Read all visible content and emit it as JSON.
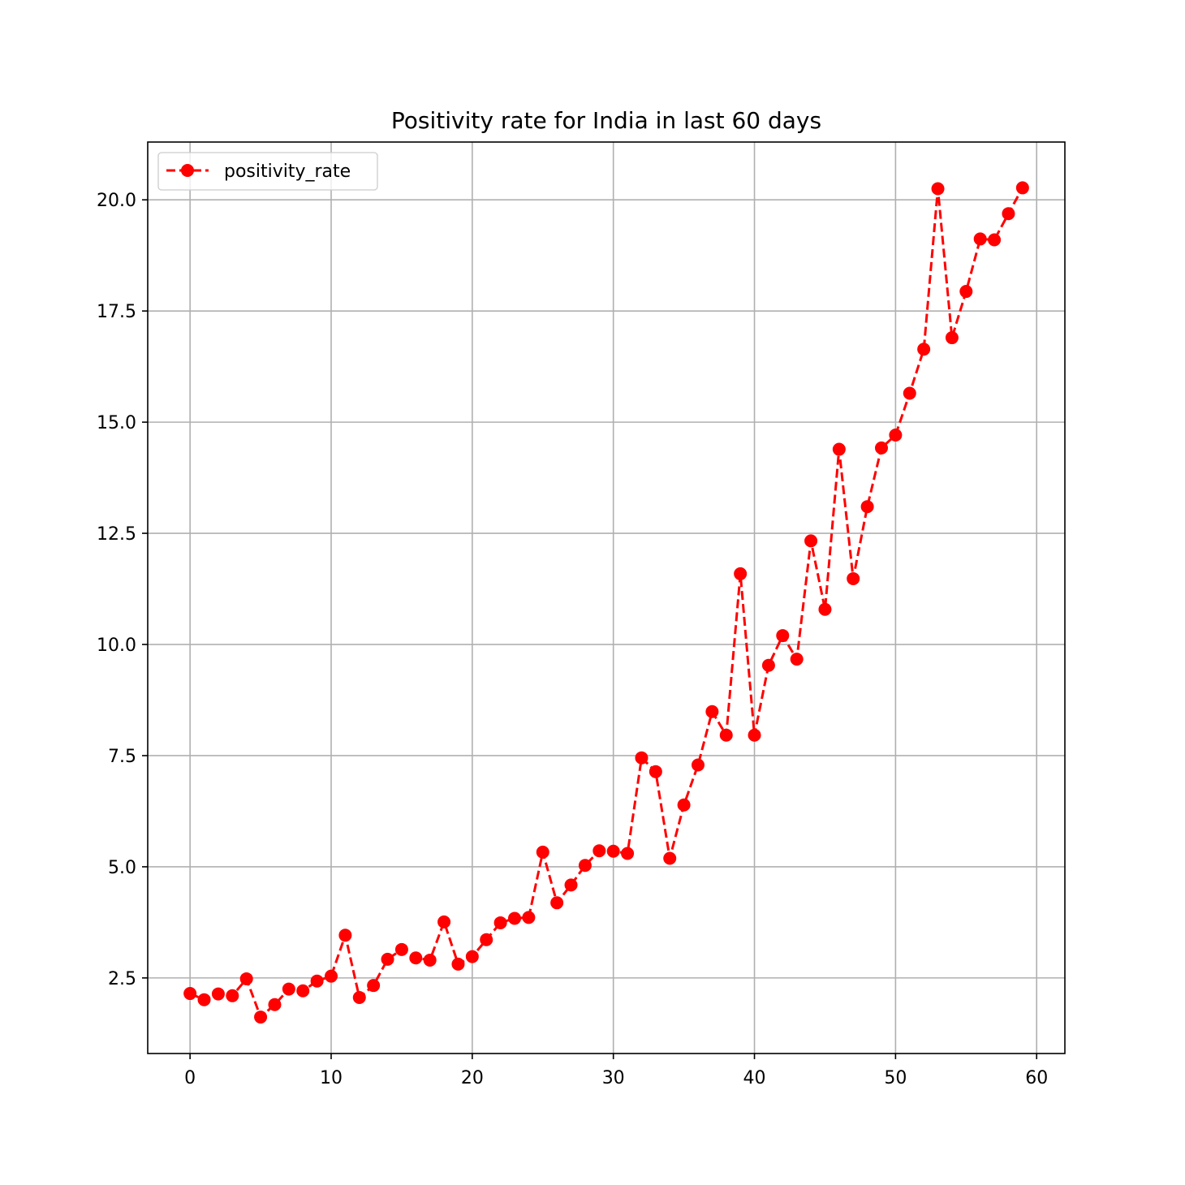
{
  "chart_data": {
    "type": "line",
    "title": "Positivity rate for India in last 60 days",
    "xlabel": "",
    "ylabel": "",
    "xlim": [
      -3,
      62
    ],
    "ylim": [
      0.8,
      21.3
    ],
    "xticks": [
      0,
      10,
      20,
      30,
      40,
      50,
      60
    ],
    "xtick_labels": [
      "0",
      "10",
      "20",
      "30",
      "40",
      "50",
      "60"
    ],
    "yticks": [
      2.5,
      5.0,
      7.5,
      10.0,
      12.5,
      15.0,
      17.5,
      20.0
    ],
    "ytick_labels": [
      "2.5",
      "5.0",
      "7.5",
      "10.0",
      "12.5",
      "15.0",
      "17.5",
      "20.0"
    ],
    "grid": true,
    "legend": {
      "position": "top-left",
      "entries": [
        "positivity_rate"
      ]
    },
    "series": [
      {
        "name": "positivity_rate",
        "color": "#ff0000",
        "line_style": "dashed",
        "marker": "circle",
        "x": [
          0,
          1,
          2,
          3,
          4,
          5,
          6,
          7,
          8,
          9,
          10,
          11,
          12,
          13,
          14,
          15,
          16,
          17,
          18,
          19,
          20,
          21,
          22,
          23,
          24,
          25,
          26,
          27,
          28,
          29,
          30,
          31,
          32,
          33,
          34,
          35,
          36,
          37,
          38,
          39,
          40,
          41,
          42,
          43,
          44,
          45,
          46,
          47,
          48,
          49,
          50,
          51,
          52,
          53,
          54,
          55,
          56,
          57,
          58,
          59
        ],
        "values": [
          2.15,
          2.01,
          2.14,
          2.1,
          2.48,
          1.62,
          1.9,
          2.25,
          2.21,
          2.43,
          2.54,
          3.46,
          2.06,
          2.33,
          2.92,
          3.14,
          2.95,
          2.9,
          3.76,
          2.81,
          2.98,
          3.36,
          3.74,
          3.84,
          3.86,
          5.33,
          4.19,
          4.59,
          5.03,
          5.36,
          5.35,
          5.3,
          7.45,
          7.14,
          5.19,
          6.39,
          7.29,
          8.49,
          7.96,
          11.59,
          7.96,
          9.53,
          10.2,
          9.67,
          12.33,
          10.79,
          14.39,
          11.48,
          13.1,
          14.42,
          14.71,
          15.65,
          16.64,
          20.25,
          16.9,
          17.94,
          19.12,
          19.1,
          19.69,
          20.27
        ]
      }
    ]
  }
}
